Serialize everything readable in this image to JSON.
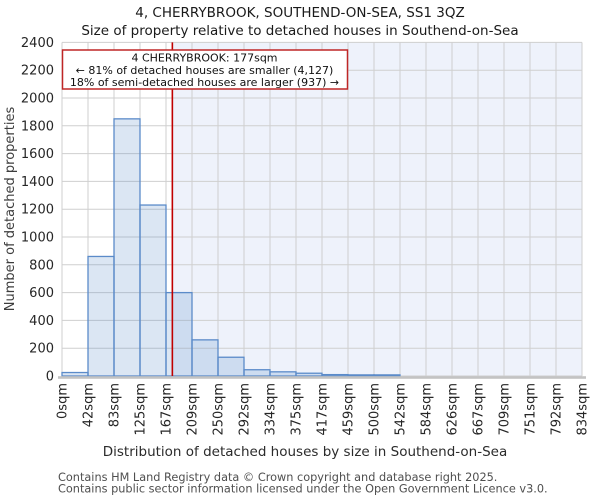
{
  "chart_data": {
    "type": "bar",
    "title": "4, CHERRYBROOK, SOUTHEND-ON-SEA, SS1 3QZ",
    "subtitle": "Size of property relative to detached houses in Southend-on-Sea",
    "xlabel": "Distribution of detached houses by size in Southend-on-Sea",
    "ylabel": "Number of detached properties",
    "x_tick_labels": [
      "0sqm",
      "42sqm",
      "83sqm",
      "125sqm",
      "167sqm",
      "209sqm",
      "250sqm",
      "292sqm",
      "334sqm",
      "375sqm",
      "417sqm",
      "459sqm",
      "500sqm",
      "542sqm",
      "584sqm",
      "626sqm",
      "667sqm",
      "709sqm",
      "751sqm",
      "792sqm",
      "834sqm"
    ],
    "x_axis_max_sqm": 834,
    "values": [
      25,
      860,
      1850,
      1230,
      600,
      260,
      135,
      45,
      30,
      20,
      10,
      8,
      8,
      0,
      0,
      0,
      0,
      0,
      0,
      0
    ],
    "y_ticks": [
      0,
      200,
      400,
      600,
      800,
      1000,
      1200,
      1400,
      1600,
      1800,
      2000,
      2200,
      2400
    ],
    "ylim": [
      0,
      2400
    ],
    "grid": true,
    "legend": "none",
    "marker": {
      "value_sqm": 177,
      "line_color": "#c00000"
    },
    "annotation": {
      "line1": "4 CHERRYBROOK: 177sqm",
      "line2": "← 81% of detached houses are smaller (4,127)",
      "line3": "18% of semi-detached houses are larger (937) →"
    },
    "colors": {
      "bar_fill": "rgba(91,139,201,0.22)",
      "bar_edge": "#5b8bc9",
      "grid": "#cfcfcf",
      "shade_right_of_marker": "#eef2fb",
      "axis_line": "#c3c3c3",
      "annotation_border": "#bf2626",
      "annotation_bg": "#ffffff"
    }
  },
  "footer": {
    "line1": "Contains HM Land Registry data © Crown copyright and database right 2025.",
    "line2": "Contains public sector information licensed under the Open Government Licence v3.0."
  }
}
